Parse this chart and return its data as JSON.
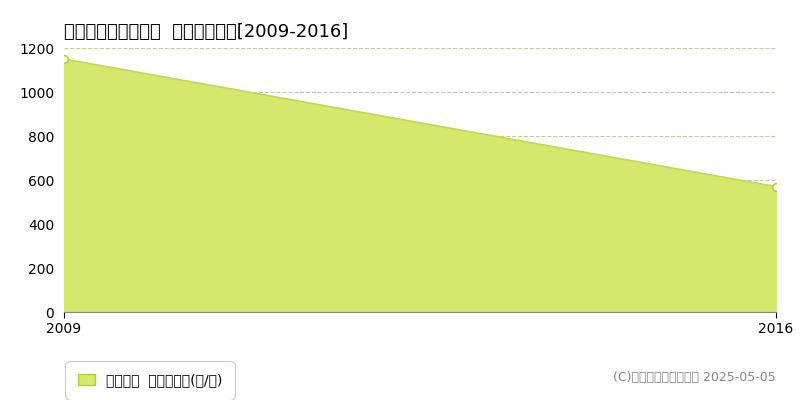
{
  "title": "いわき市三和町差塩  林地価格推移[2009-2016]",
  "x_values": [
    2009,
    2016
  ],
  "y_values": [
    1150,
    570
  ],
  "y_min": 0,
  "y_max": 1200,
  "x_min": 2009,
  "x_max": 2016,
  "y_ticks": [
    0,
    200,
    400,
    600,
    800,
    1000,
    1200
  ],
  "x_ticks": [
    2009,
    2016
  ],
  "line_color": "#c8d940",
  "fill_color": "#d4e86e",
  "fill_alpha": 1.0,
  "marker_color": "#ffffff",
  "marker_edge_color": "#b8cc30",
  "grid_color": "#c8c8a0",
  "background_color": "#ffffff",
  "legend_label": "林地価格  平均坪単価(円/坪)",
  "copyright_text": "(C)土地価格ドットコム 2025-05-05",
  "title_fontsize": 13,
  "tick_fontsize": 10,
  "legend_fontsize": 10,
  "copyright_fontsize": 9
}
